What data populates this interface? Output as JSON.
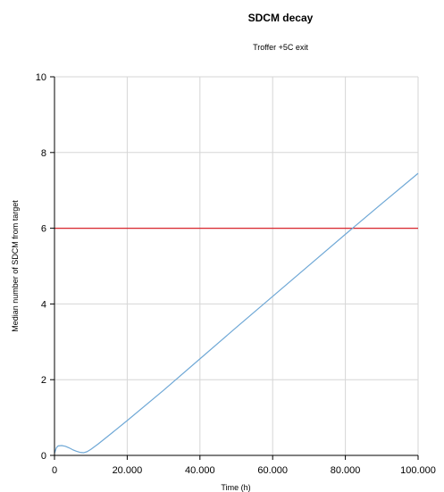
{
  "chart_data": {
    "type": "line",
    "title": "SDCM decay",
    "subtitle": "Troffer +5C exit",
    "xlabel": "Time (h)",
    "ylabel": "Median number of SDCM from target",
    "xlim": [
      0,
      100000
    ],
    "ylim": [
      0,
      10
    ],
    "grid": true,
    "x_ticks": [
      {
        "value": 0,
        "label": "0"
      },
      {
        "value": 20000,
        "label": "20.000"
      },
      {
        "value": 40000,
        "label": "40.000"
      },
      {
        "value": 60000,
        "label": "60.000"
      },
      {
        "value": 80000,
        "label": "80.000"
      },
      {
        "value": 100000,
        "label": "100.000"
      }
    ],
    "y_ticks": [
      {
        "value": 0,
        "label": "0"
      },
      {
        "value": 2,
        "label": "2"
      },
      {
        "value": 4,
        "label": "4"
      },
      {
        "value": 6,
        "label": "6"
      },
      {
        "value": 8,
        "label": "8"
      },
      {
        "value": 10,
        "label": "10"
      }
    ],
    "series": [
      {
        "color": "#6fa8d6",
        "x": [
          0,
          500,
          1000,
          2000,
          3000,
          4000,
          5000,
          6000,
          7000,
          8000,
          9000,
          10000,
          12000,
          15000,
          20000,
          30000,
          40000,
          50000,
          60000,
          70000,
          80000,
          90000,
          100000
        ],
        "y": [
          0.05,
          0.2,
          0.25,
          0.26,
          0.24,
          0.2,
          0.15,
          0.11,
          0.08,
          0.07,
          0.1,
          0.16,
          0.3,
          0.53,
          0.92,
          1.72,
          2.55,
          3.38,
          4.2,
          5.02,
          5.84,
          6.65,
          7.45
        ]
      }
    ],
    "reference_lines": [
      {
        "axis": "y",
        "value": 6,
        "color": "#d9262c"
      }
    ],
    "colors": {
      "grid": "#d6d6d6",
      "axis": "#000000",
      "series": "#6fa8d6",
      "reference": "#d9262c"
    }
  }
}
